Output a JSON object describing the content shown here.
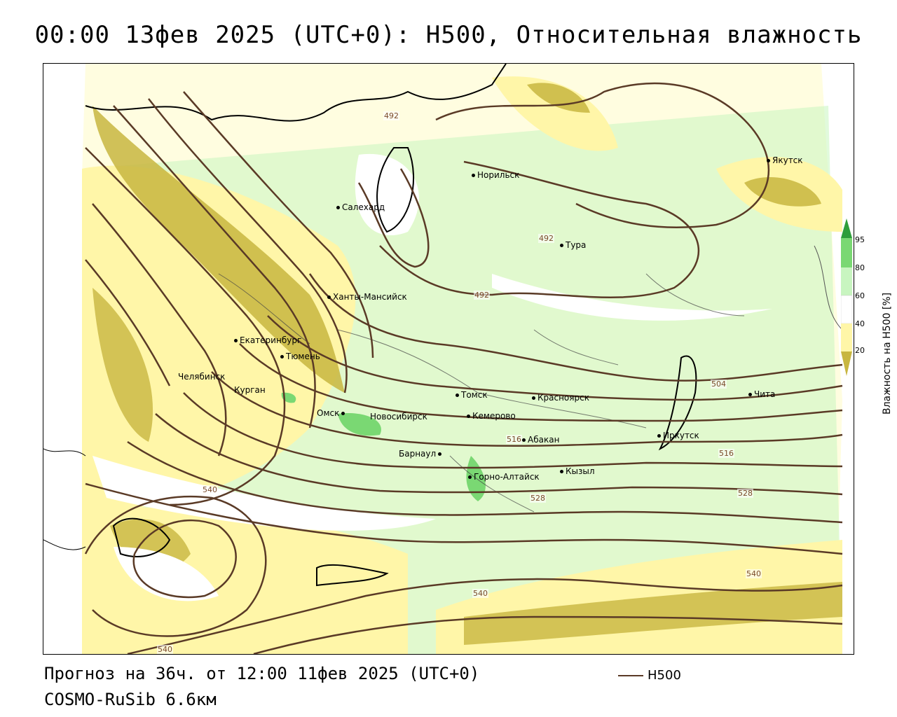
{
  "title": "00:00 13фев 2025 (UTC+0): H500, Относительная влажность",
  "footer": {
    "forecast": "Прогноз на 36ч. от 12:00 11фев 2025 (UTC+0)",
    "model": "COSMO-RuSib 6.6км"
  },
  "line_legend": {
    "label": "H500",
    "color": "#5a3a26"
  },
  "color_legend": {
    "title": "Влажность на H500 [%]",
    "ticks": [
      "95",
      "80",
      "60",
      "40",
      "20"
    ],
    "colors": {
      "lt20": "#c8b640",
      "p20_40": "#fff6a8",
      "p40_60": "#ffffff",
      "p60_80": "#c8f5c0",
      "p80_95": "#7ad873",
      "gt95": "#2e9e3a"
    }
  },
  "cities": [
    {
      "name": "Якутск"
    },
    {
      "name": "Норильск"
    },
    {
      "name": "Салехард"
    },
    {
      "name": "Тура"
    },
    {
      "name": "Ханты-Мансийск"
    },
    {
      "name": "Екатеринбург"
    },
    {
      "name": "Тюмень"
    },
    {
      "name": "Челябинск"
    },
    {
      "name": "Курган"
    },
    {
      "name": "Омск"
    },
    {
      "name": "Новосибирск"
    },
    {
      "name": "Томск"
    },
    {
      "name": "Кемерово"
    },
    {
      "name": "Красноярск"
    },
    {
      "name": "Абакан"
    },
    {
      "name": "Барнаул"
    },
    {
      "name": "Горно-Алтайск"
    },
    {
      "name": "Кызыл"
    },
    {
      "name": "Иркутск"
    },
    {
      "name": "Чита"
    }
  ],
  "isolines": [
    "492",
    "492",
    "492",
    "504",
    "516",
    "516",
    "528",
    "528",
    "540",
    "540",
    "540",
    "540"
  ]
}
